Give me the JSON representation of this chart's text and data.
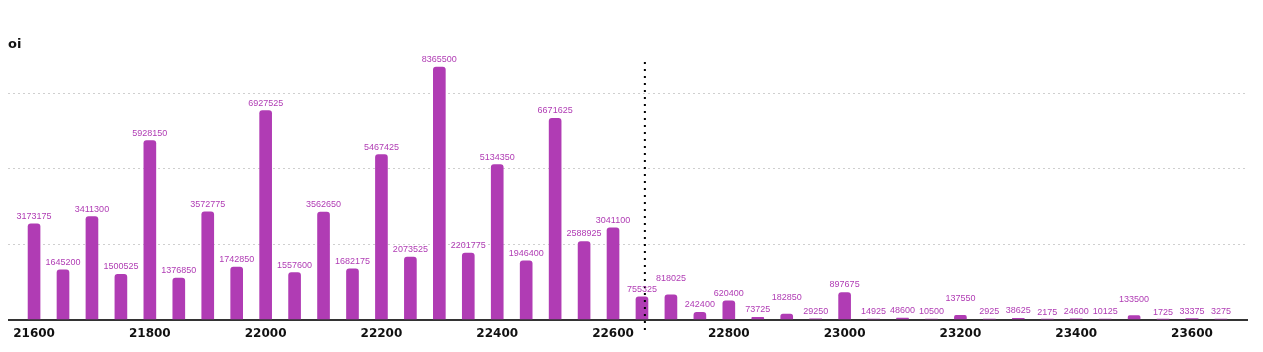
{
  "chart_data": {
    "type": "bar",
    "ylabel": "oi",
    "x": [
      21600,
      21650,
      21700,
      21750,
      21800,
      21850,
      21900,
      21950,
      22000,
      22050,
      22100,
      22150,
      22200,
      22250,
      22300,
      22350,
      22400,
      22450,
      22500,
      22550,
      22600,
      22650,
      22700,
      22750,
      22800,
      22850,
      22900,
      22950,
      23000,
      23050,
      23100,
      23150,
      23200,
      23250,
      23300,
      23350,
      23400,
      23450,
      23500,
      23550,
      23600,
      23650
    ],
    "values": [
      3173175,
      1645200,
      3411300,
      1500525,
      5928150,
      1376850,
      3572775,
      1742850,
      6927525,
      1557600,
      3562650,
      1682175,
      5467425,
      2073525,
      8365500,
      2201775,
      5134350,
      1946400,
      6671625,
      2588925,
      3041100,
      755325,
      818025,
      242400,
      620400,
      73725,
      182850,
      29250,
      897675,
      14925,
      48600,
      10500,
      137550,
      2925,
      38625,
      2175,
      24600,
      10125,
      133500,
      1725,
      33375,
      3275
    ],
    "color": "#b03cb4",
    "data_labels": true,
    "xlim": [
      21555,
      23695
    ],
    "xticks": [
      21600,
      21800,
      22000,
      22200,
      22400,
      22600,
      22800,
      23000,
      23200,
      23400,
      23600
    ],
    "yticks": [
      0,
      {
        "value": 2500000,
        "label": null
      },
      {
        "value": 5000000,
        "label": null
      },
      {
        "value": 7500000,
        "label": null
      }
    ],
    "tick_labels": "x",
    "grid": "y",
    "ref_lines": [
      {
        "axis": "x",
        "value": 22655,
        "color": "#000000",
        "line_style": "dotted"
      }
    ]
  }
}
